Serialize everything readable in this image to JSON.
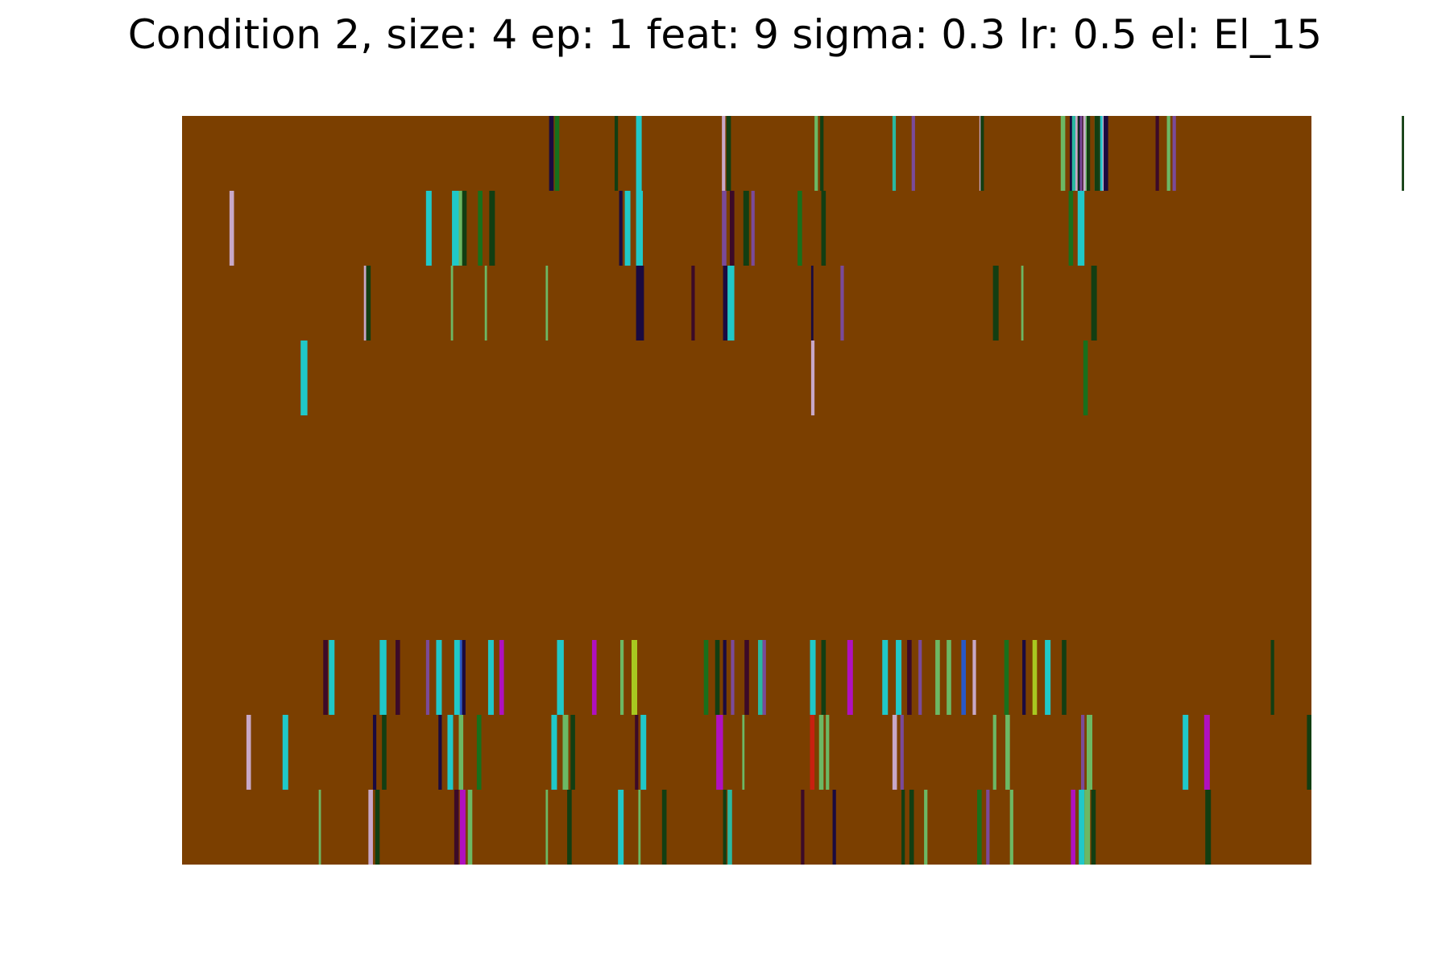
{
  "chart_data": {
    "type": "heatmap",
    "title": "Condition 2, size: 4 ep: 1 feat: 9 sigma: 0.3 lr: 0.5 el: El_15",
    "xlabel": "",
    "ylabel": "",
    "axes_visible": false,
    "grid": false,
    "legend": "none",
    "x_range": [
      0,
      1000
    ],
    "n_rows": 10,
    "background_color": "#7b3f00",
    "palette": {
      "c": "#20c8c8",
      "d": "#3c0a28",
      "n": "#1a0a40",
      "g": "#18701c",
      "k": "#123e12",
      "l": "#6cb864",
      "s": "#2ab8a0",
      "p": "#7a4a9a",
      "m": "#b010c0",
      "y": "#a8c820",
      "r": "#c82010",
      "w": "#c8a8c8",
      "b": "#2858c8"
    },
    "rows": [
      [
        [
          325,
          4,
          "n"
        ],
        [
          330,
          4,
          "g"
        ],
        [
          383,
          3,
          "k"
        ],
        [
          402,
          5,
          "c"
        ],
        [
          478,
          3,
          "w"
        ],
        [
          482,
          4,
          "k"
        ],
        [
          560,
          3,
          "l"
        ],
        [
          565,
          3,
          "k"
        ],
        [
          646,
          3,
          "p"
        ],
        [
          629,
          3,
          "s"
        ],
        [
          707,
          3,
          "k"
        ],
        [
          706,
          1,
          "w"
        ],
        [
          778,
          4,
          "l"
        ],
        [
          786,
          3,
          "n"
        ],
        [
          790,
          3,
          "w"
        ],
        [
          793,
          3,
          "k"
        ],
        [
          796,
          3,
          "l"
        ],
        [
          794,
          1,
          "n"
        ],
        [
          796,
          2,
          "d"
        ],
        [
          811,
          3,
          "k"
        ],
        [
          813,
          5,
          "p"
        ],
        [
          816,
          4,
          "n"
        ],
        [
          810,
          1,
          "w"
        ],
        [
          808,
          3,
          "l"
        ],
        [
          813,
          3,
          "w"
        ],
        [
          813,
          2,
          "c"
        ],
        [
          788,
          3,
          "s"
        ],
        [
          795,
          2,
          "p"
        ],
        [
          799,
          4,
          "c"
        ],
        [
          800,
          2,
          "l"
        ],
        [
          1080,
          2,
          "k"
        ],
        [
          862,
          3,
          "d"
        ],
        [
          872,
          3,
          "l"
        ],
        [
          877,
          3,
          "p"
        ],
        [
          801,
          3,
          "k"
        ],
        [
          798,
          2,
          "w"
        ],
        [
          808,
          3,
          "k"
        ]
      ],
      [
        [
          42,
          4,
          "w"
        ],
        [
          216,
          5,
          "c"
        ],
        [
          239,
          6,
          "c"
        ],
        [
          245,
          4,
          "l"
        ],
        [
          248,
          4,
          "k"
        ],
        [
          262,
          4,
          "g"
        ],
        [
          272,
          5,
          "k"
        ],
        [
          387,
          3,
          "n"
        ],
        [
          392,
          5,
          "c"
        ],
        [
          402,
          6,
          "c"
        ],
        [
          478,
          4,
          "p"
        ],
        [
          485,
          4,
          "d"
        ],
        [
          497,
          5,
          "k"
        ],
        [
          504,
          3,
          "p"
        ],
        [
          545,
          4,
          "g"
        ],
        [
          566,
          4,
          "k"
        ],
        [
          785,
          4,
          "g"
        ],
        [
          793,
          6,
          "c"
        ]
      ],
      [
        [
          161,
          2,
          "w"
        ],
        [
          163,
          4,
          "k"
        ],
        [
          238,
          2,
          "l"
        ],
        [
          268,
          2,
          "l"
        ],
        [
          322,
          2,
          "l"
        ],
        [
          402,
          7,
          "n"
        ],
        [
          451,
          3,
          "d"
        ],
        [
          479,
          4,
          "n"
        ],
        [
          483,
          6,
          "c"
        ],
        [
          557,
          2,
          "n"
        ],
        [
          583,
          3,
          "p"
        ],
        [
          718,
          5,
          "k"
        ],
        [
          743,
          2,
          "l"
        ],
        [
          805,
          5,
          "k"
        ]
      ],
      [
        [
          105,
          6,
          "c"
        ],
        [
          557,
          3,
          "w"
        ],
        [
          798,
          4,
          "g"
        ]
      ],
      [],
      [],
      [],
      [
        [
          125,
          4,
          "d"
        ],
        [
          130,
          5,
          "c"
        ],
        [
          175,
          6,
          "c"
        ],
        [
          189,
          4,
          "d"
        ],
        [
          216,
          3,
          "p"
        ],
        [
          225,
          5,
          "c"
        ],
        [
          241,
          5,
          "c"
        ],
        [
          246,
          2,
          "b"
        ],
        [
          248,
          3,
          "n"
        ],
        [
          271,
          5,
          "c"
        ],
        [
          281,
          4,
          "m"
        ],
        [
          332,
          6,
          "c"
        ],
        [
          363,
          4,
          "m"
        ],
        [
          388,
          3,
          "l"
        ],
        [
          398,
          5,
          "y"
        ],
        [
          462,
          4,
          "g"
        ],
        [
          472,
          4,
          "k"
        ],
        [
          479,
          3,
          "n"
        ],
        [
          486,
          3,
          "p"
        ],
        [
          498,
          4,
          "d"
        ],
        [
          510,
          4,
          "s"
        ],
        [
          514,
          3,
          "p"
        ],
        [
          556,
          5,
          "c"
        ],
        [
          566,
          4,
          "k"
        ],
        [
          589,
          5,
          "m"
        ],
        [
          620,
          5,
          "c"
        ],
        [
          632,
          5,
          "c"
        ],
        [
          642,
          4,
          "d"
        ],
        [
          652,
          3,
          "p"
        ],
        [
          667,
          4,
          "l"
        ],
        [
          677,
          4,
          "l"
        ],
        [
          690,
          4,
          "b"
        ],
        [
          700,
          3,
          "w"
        ],
        [
          728,
          4,
          "g"
        ],
        [
          744,
          3,
          "n"
        ],
        [
          753,
          4,
          "y"
        ],
        [
          764,
          5,
          "c"
        ],
        [
          779,
          4,
          "k"
        ],
        [
          964,
          3,
          "k"
        ]
      ],
      [
        [
          57,
          4,
          "w"
        ],
        [
          89,
          5,
          "c"
        ],
        [
          169,
          3,
          "n"
        ],
        [
          177,
          4,
          "k"
        ],
        [
          227,
          3,
          "n"
        ],
        [
          235,
          5,
          "c"
        ],
        [
          245,
          4,
          "l"
        ],
        [
          261,
          4,
          "g"
        ],
        [
          327,
          5,
          "c"
        ],
        [
          337,
          5,
          "l"
        ],
        [
          344,
          4,
          "k"
        ],
        [
          401,
          3,
          "d"
        ],
        [
          406,
          5,
          "c"
        ],
        [
          473,
          6,
          "m"
        ],
        [
          496,
          2,
          "l"
        ],
        [
          556,
          4,
          "r"
        ],
        [
          564,
          4,
          "l"
        ],
        [
          570,
          3,
          "l"
        ],
        [
          629,
          4,
          "w"
        ],
        [
          636,
          3,
          "p"
        ],
        [
          718,
          3,
          "l"
        ],
        [
          729,
          4,
          "l"
        ],
        [
          796,
          3,
          "p"
        ],
        [
          801,
          5,
          "l"
        ],
        [
          886,
          5,
          "c"
        ],
        [
          905,
          5,
          "m"
        ],
        [
          996,
          4,
          "k"
        ]
      ],
      [
        [
          121,
          2,
          "l"
        ],
        [
          165,
          4,
          "w"
        ],
        [
          171,
          4,
          "k"
        ],
        [
          241,
          4,
          "d"
        ],
        [
          246,
          5,
          "m"
        ],
        [
          253,
          4,
          "l"
        ],
        [
          322,
          2,
          "l"
        ],
        [
          341,
          4,
          "k"
        ],
        [
          386,
          5,
          "c"
        ],
        [
          404,
          2,
          "l"
        ],
        [
          425,
          4,
          "k"
        ],
        [
          479,
          3,
          "k"
        ],
        [
          483,
          4,
          "s"
        ],
        [
          548,
          3,
          "d"
        ],
        [
          576,
          3,
          "n"
        ],
        [
          637,
          3,
          "k"
        ],
        [
          644,
          4,
          "k"
        ],
        [
          657,
          3,
          "l"
        ],
        [
          704,
          4,
          "g"
        ],
        [
          712,
          3,
          "p"
        ],
        [
          733,
          3,
          "l"
        ],
        [
          787,
          4,
          "m"
        ],
        [
          794,
          5,
          "c"
        ],
        [
          799,
          5,
          "l"
        ],
        [
          805,
          4,
          "k"
        ],
        [
          906,
          5,
          "k"
        ]
      ]
    ]
  }
}
